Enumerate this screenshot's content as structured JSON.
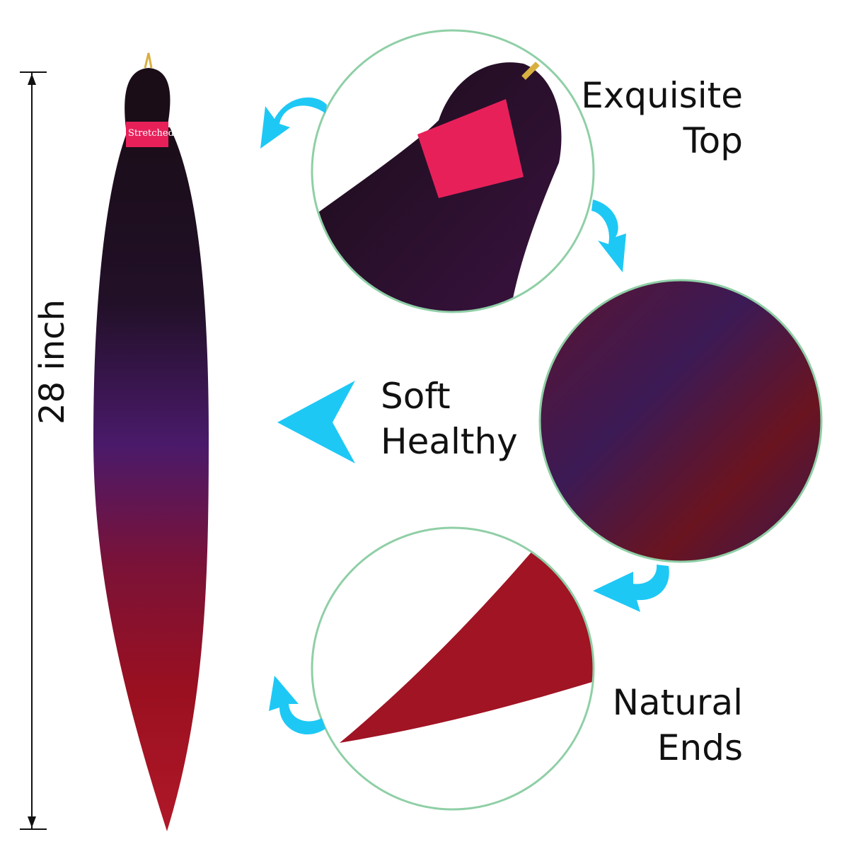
{
  "measurement": {
    "length_label": "28 inch"
  },
  "features": [
    {
      "line1": "Exquisite",
      "line2": "Top"
    },
    {
      "line1": "Soft",
      "line2": "Healthy"
    },
    {
      "line1": "Natural",
      "line2": "Ends"
    }
  ],
  "band_text": "Stretched",
  "colors": {
    "arrow": "#1ec8f5",
    "circle_border": "#8fcfa6",
    "band": "#e8205a",
    "hair_top": "#1a0d18",
    "hair_mid": "#4a1a6a",
    "hair_end": "#a01020"
  }
}
